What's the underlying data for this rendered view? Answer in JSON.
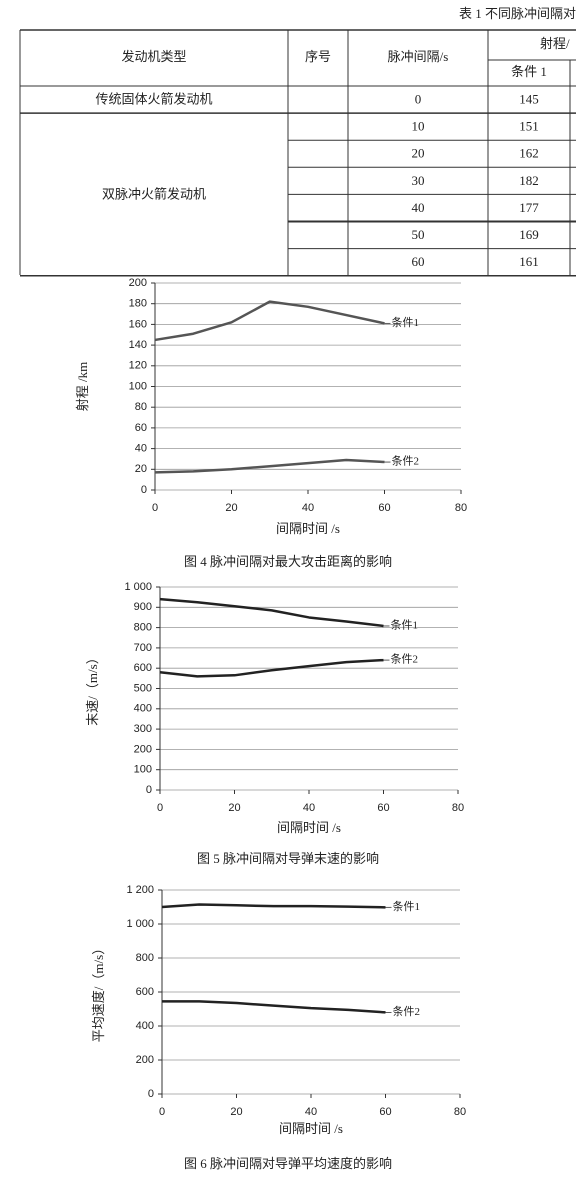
{
  "table": {
    "caption": "表 1 不同脉冲间隔对",
    "header": [
      "发动机类型",
      "序号",
      "脉冲间隔/s",
      "射程/",
      "条件 1"
    ],
    "groups": [
      {
        "engine": "传统固体火箭发动机",
        "rows": [
          [
            0,
            145
          ]
        ]
      },
      {
        "engine": "双脉冲火箭发动机",
        "rows": [
          [
            10,
            151
          ],
          [
            20,
            162
          ],
          [
            30,
            182
          ],
          [
            40,
            177
          ],
          [
            50,
            169
          ],
          [
            60,
            161
          ]
        ]
      }
    ]
  },
  "chart_data": [
    {
      "type": "line",
      "caption": "图 4 脉冲间隔对最大攻击距离的影响",
      "xlabel": "间隔时间 /s",
      "ylabel": "射程 /km",
      "x": [
        0,
        10,
        20,
        30,
        40,
        50,
        60
      ],
      "xlim": [
        0,
        80
      ],
      "xticks": [
        0,
        20,
        40,
        60,
        80
      ],
      "ylim": [
        0,
        200
      ],
      "yticks": [
        0,
        20,
        40,
        60,
        80,
        100,
        120,
        140,
        160,
        180,
        200
      ],
      "grid": true,
      "series": [
        {
          "name": "条件1",
          "color": "#555555",
          "values": [
            145,
            151,
            162,
            182,
            177,
            169,
            161
          ]
        },
        {
          "name": "条件2",
          "color": "#555555",
          "values": [
            17,
            18,
            20,
            23,
            26,
            29,
            27
          ]
        }
      ]
    },
    {
      "type": "line",
      "caption": "图 5 脉冲间隔对导弹末速的影响",
      "xlabel": "间隔时间 /s",
      "ylabel": "末速/（m/s）",
      "x": [
        0,
        10,
        20,
        30,
        40,
        50,
        60
      ],
      "xlim": [
        0,
        80
      ],
      "xticks": [
        0,
        20,
        40,
        60,
        80
      ],
      "ylim": [
        0,
        1000
      ],
      "yticks": [
        0,
        100,
        200,
        300,
        400,
        500,
        600,
        700,
        800,
        900,
        {
          "value": 1000,
          "label": "1 000"
        }
      ],
      "grid": true,
      "series": [
        {
          "name": "条件1",
          "color": "#222222",
          "values": [
            940,
            925,
            905,
            885,
            850,
            830,
            808
          ]
        },
        {
          "name": "条件2",
          "color": "#222222",
          "values": [
            580,
            560,
            565,
            590,
            610,
            630,
            640
          ]
        }
      ]
    },
    {
      "type": "line",
      "caption": "图 6 脉冲间隔对导弹平均速度的影响",
      "xlabel": "间隔时间 /s",
      "ylabel": "平均速度/（m/s）",
      "x": [
        0,
        10,
        20,
        30,
        40,
        50,
        60
      ],
      "xlim": [
        0,
        80
      ],
      "xticks": [
        0,
        20,
        40,
        60,
        80
      ],
      "ylim": [
        0,
        1200
      ],
      "yticks": [
        0,
        200,
        400,
        600,
        800,
        {
          "value": 1000,
          "label": "1 000"
        },
        {
          "value": 1200,
          "label": "1 200"
        }
      ],
      "grid": true,
      "series": [
        {
          "name": "条件1",
          "color": "#222222",
          "values": [
            1100,
            1115,
            1110,
            1105,
            1105,
            1102,
            1098
          ]
        },
        {
          "name": "条件2",
          "color": "#222222",
          "values": [
            545,
            545,
            535,
            520,
            505,
            495,
            480
          ]
        }
      ]
    }
  ]
}
